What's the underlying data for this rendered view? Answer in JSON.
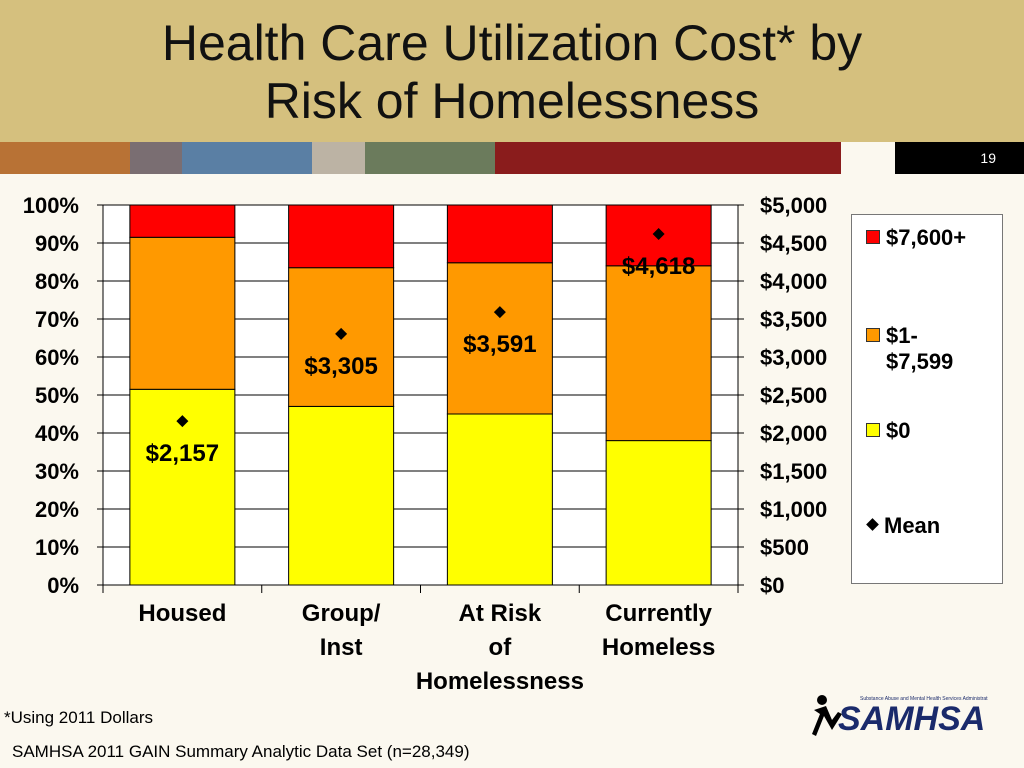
{
  "slide": {
    "title_line1": "Health Care Utilization Cost* by",
    "title_line2": "Risk of Homelessness",
    "slide_number": "19",
    "footnote_1": "*Using 2011 Dollars",
    "footnote_2": "SAMHSA 2011 GAIN Summary Analytic Data Set (n=28,349)",
    "logo_text": "SAMHSA",
    "logo_subtext": "Substance Abuse and Mental Health Services Administration"
  },
  "colors": {
    "title_band": "#d5c07e",
    "stripes": [
      "#b87235",
      "#7a6e72",
      "#5a7fa4",
      "#bcb3a4",
      "#6b7b5c",
      "#8a1c1c",
      "#fbf8ef"
    ],
    "zero": "#ffff00",
    "mid": "#ff9900",
    "high": "#ff0000",
    "mean_marker": "#000000"
  },
  "chart_data": {
    "type": "bar",
    "stacked": true,
    "categories": [
      "Housed",
      "Group/ Inst",
      "At Risk of Homelessness",
      "Currently Homeless"
    ],
    "category_lines": [
      [
        "Housed"
      ],
      [
        "Group/",
        "Inst"
      ],
      [
        "At Risk",
        "of",
        "Homelessness"
      ],
      [
        "Currently",
        "Homeless"
      ]
    ],
    "series": [
      {
        "name": "$0",
        "color": "#ffff00",
        "values": [
          51.5,
          47,
          45,
          38
        ]
      },
      {
        "name": "$1-$7,599",
        "color": "#ff9900",
        "values": [
          40,
          36.5,
          39.8,
          46
        ]
      },
      {
        "name": "$7,600+",
        "color": "#ff0000",
        "values": [
          8.5,
          16.5,
          15.2,
          16
        ]
      }
    ],
    "left_axis": {
      "ylim": [
        0,
        100
      ],
      "ticks": [
        "0%",
        "10%",
        "20%",
        "30%",
        "40%",
        "50%",
        "60%",
        "70%",
        "80%",
        "90%",
        "100%"
      ]
    },
    "right_axis": {
      "ylim": [
        0,
        5000
      ],
      "ticks": [
        "$0",
        "$500",
        "$1,000",
        "$1,500",
        "$2,000",
        "$2,500",
        "$3,000",
        "$3,500",
        "$4,000",
        "$4,500",
        "$5,000"
      ]
    },
    "mean_series": {
      "name": "Mean",
      "values": [
        2157,
        3305,
        3591,
        4618
      ],
      "labels": [
        "$2,157",
        "$3,305",
        "$3,591",
        "$4,618"
      ]
    },
    "legend": {
      "placement": "right",
      "entries": [
        {
          "lines": [
            "$7,600+"
          ],
          "type": "swatch",
          "color": "#ff0000"
        },
        {
          "lines": [
            "$1-",
            "$7,599"
          ],
          "type": "swatch",
          "color": "#ff9900"
        },
        {
          "lines": [
            "$0"
          ],
          "type": "swatch",
          "color": "#ffff00"
        },
        {
          "lines": [
            "Mean"
          ],
          "type": "diamond",
          "color": "#000000"
        }
      ]
    }
  }
}
